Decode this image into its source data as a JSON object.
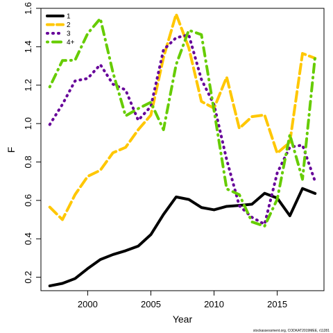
{
  "chart_data": {
    "type": "line",
    "xlabel": "Year",
    "ylabel": "F",
    "xlim": [
      1996.3,
      2018.7
    ],
    "ylim": [
      0.13,
      1.6
    ],
    "xticks": [
      2000,
      2005,
      2010,
      2015
    ],
    "xtick_labels": [
      "2000",
      "2005",
      "2010",
      "2015"
    ],
    "yticks": [
      0.2,
      0.4,
      0.6,
      0.8,
      1.0,
      1.2,
      1.4,
      1.6
    ],
    "ytick_labels": [
      "0.2",
      "0.4",
      "0.6",
      "0.8",
      "1.0",
      "1.2",
      "1.4",
      "1.6"
    ],
    "grid": false,
    "legend_position": "top-left",
    "x": [
      1997,
      1998,
      1999,
      2000,
      2001,
      2002,
      2003,
      2004,
      2005,
      2006,
      2007,
      2008,
      2009,
      2010,
      2011,
      2012,
      2013,
      2014,
      2015,
      2016,
      2017,
      2018
    ],
    "series": [
      {
        "name": "1",
        "color": "#000000",
        "dash": "solid",
        "values": [
          0.155,
          0.168,
          0.193,
          0.245,
          0.292,
          0.318,
          0.338,
          0.362,
          0.422,
          0.527,
          0.618,
          0.605,
          0.563,
          0.551,
          0.569,
          0.574,
          0.58,
          0.637,
          0.612,
          0.52,
          0.662,
          0.636
        ]
      },
      {
        "name": "2",
        "color": "#FFC700",
        "dash": "dashed",
        "values": [
          0.565,
          0.5,
          0.63,
          0.725,
          0.757,
          0.848,
          0.876,
          0.968,
          1.044,
          1.344,
          1.57,
          1.395,
          1.115,
          1.08,
          1.242,
          0.975,
          1.036,
          1.045,
          0.846,
          0.903,
          1.365,
          1.34
        ]
      },
      {
        "name": "3",
        "color": "#660099",
        "dash": "dotted",
        "values": [
          0.995,
          1.1,
          1.222,
          1.235,
          1.307,
          1.205,
          1.175,
          1.017,
          1.089,
          1.384,
          1.447,
          1.462,
          1.23,
          1.098,
          0.812,
          0.572,
          0.512,
          0.476,
          0.743,
          0.877,
          0.888,
          0.698
        ]
      },
      {
        "name": "4+",
        "color": "#66CC00",
        "dash": "dotdash",
        "values": [
          1.191,
          1.328,
          1.33,
          1.469,
          1.547,
          1.266,
          1.04,
          1.078,
          1.111,
          0.968,
          1.307,
          1.486,
          1.463,
          1.068,
          0.66,
          0.63,
          0.488,
          0.466,
          0.606,
          0.942,
          0.71,
          1.352
        ]
      }
    ],
    "caption": "stockassessment.org, CODKAT2019MEE, r11281"
  }
}
